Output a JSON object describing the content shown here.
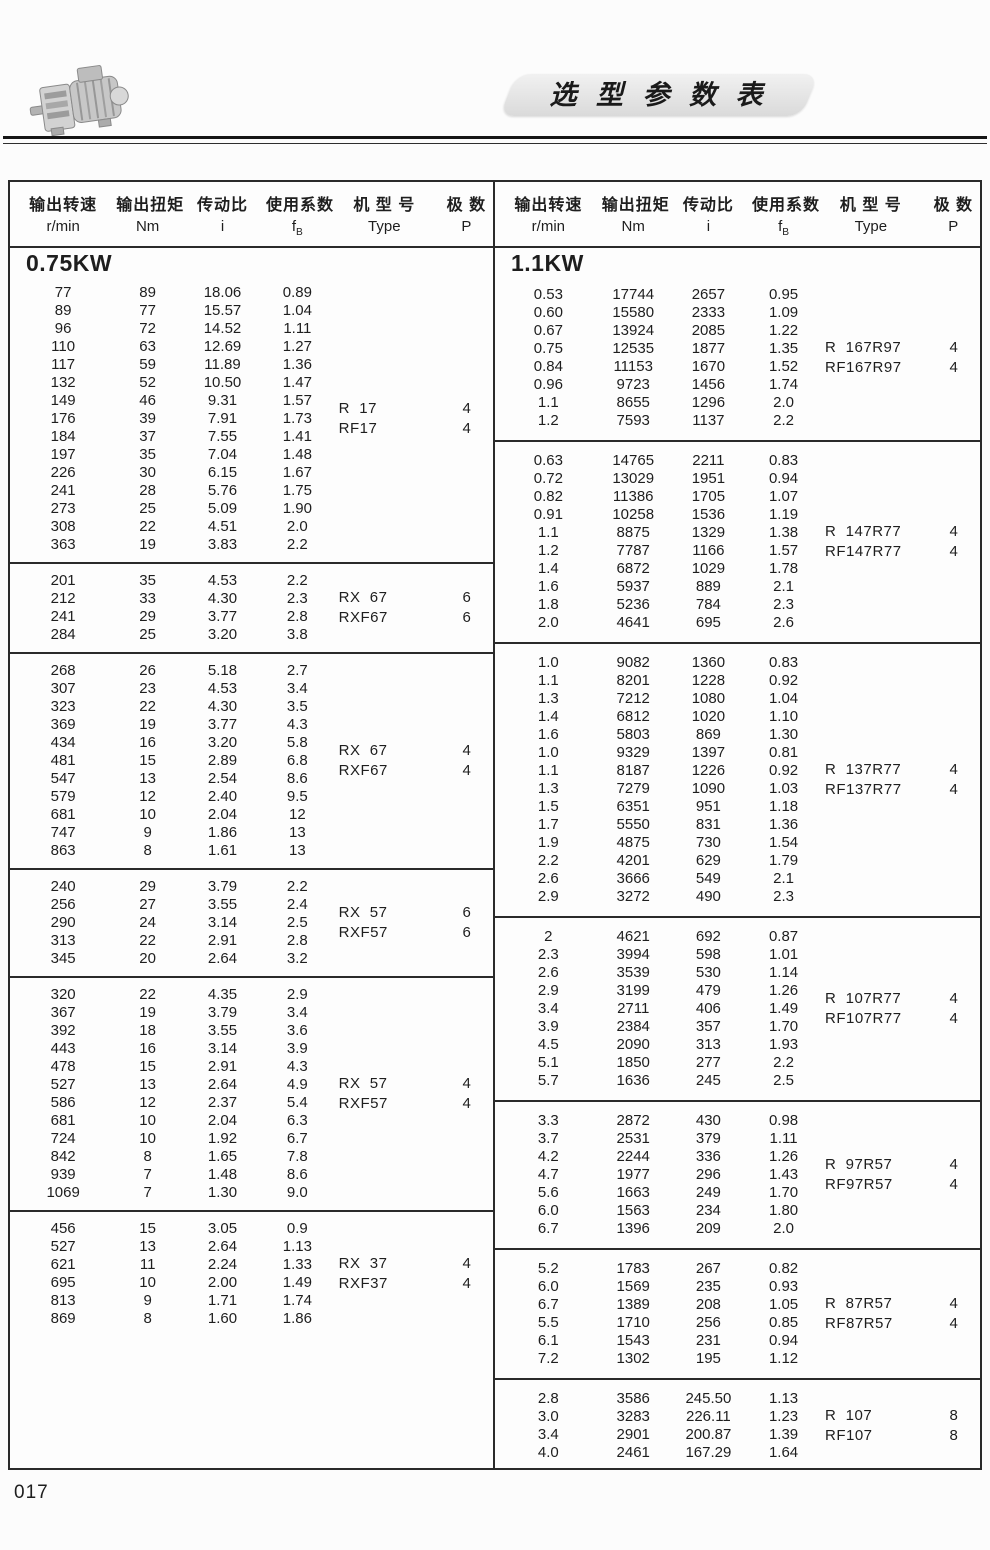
{
  "page": {
    "title": "选 型 参 数 表",
    "page_number": "017",
    "logo": "gearmotor-photo"
  },
  "header": {
    "cn": [
      "输出转速",
      "输出扭矩",
      "传动比",
      "使用系数",
      "机 型 号",
      "极 数"
    ],
    "units": [
      "r/min",
      "Nm",
      "i",
      "fB",
      "Type",
      "P"
    ]
  },
  "left_table": {
    "section": "0.75KW",
    "groups": [
      {
        "rows": [
          [
            "77",
            "89",
            "18.06",
            "0.89"
          ],
          [
            "89",
            "77",
            "15.57",
            "1.04"
          ],
          [
            "96",
            "72",
            "14.52",
            "1.11"
          ],
          [
            "110",
            "63",
            "12.69",
            "1.27"
          ],
          [
            "117",
            "59",
            "11.89",
            "1.36"
          ],
          [
            "132",
            "52",
            "10.50",
            "1.47"
          ],
          [
            "149",
            "46",
            "9.31",
            "1.57"
          ],
          [
            "176",
            "39",
            "7.91",
            "1.73"
          ],
          [
            "184",
            "37",
            "7.55",
            "1.41"
          ],
          [
            "197",
            "35",
            "7.04",
            "1.48"
          ],
          [
            "226",
            "30",
            "6.15",
            "1.67"
          ],
          [
            "241",
            "28",
            "5.76",
            "1.75"
          ],
          [
            "273",
            "25",
            "5.09",
            "1.90"
          ],
          [
            "308",
            "22",
            "4.51",
            "2.0"
          ],
          [
            "363",
            "19",
            "3.83",
            "2.2"
          ]
        ],
        "types": [
          {
            "type": "R  17",
            "p": "4"
          },
          {
            "type": "RF17",
            "p": "4"
          }
        ]
      },
      {
        "rows": [
          [
            "201",
            "35",
            "4.53",
            "2.2"
          ],
          [
            "212",
            "33",
            "4.30",
            "2.3"
          ],
          [
            "241",
            "29",
            "3.77",
            "2.8"
          ],
          [
            "284",
            "25",
            "3.20",
            "3.8"
          ]
        ],
        "types": [
          {
            "type": "RX  67",
            "p": "6"
          },
          {
            "type": "RXF67",
            "p": "6"
          }
        ]
      },
      {
        "rows": [
          [
            "268",
            "26",
            "5.18",
            "2.7"
          ],
          [
            "307",
            "23",
            "4.53",
            "3.4"
          ],
          [
            "323",
            "22",
            "4.30",
            "3.5"
          ],
          [
            "369",
            "19",
            "3.77",
            "4.3"
          ],
          [
            "434",
            "16",
            "3.20",
            "5.8"
          ],
          [
            "481",
            "15",
            "2.89",
            "6.8"
          ],
          [
            "547",
            "13",
            "2.54",
            "8.6"
          ],
          [
            "579",
            "12",
            "2.40",
            "9.5"
          ],
          [
            "681",
            "10",
            "2.04",
            "12"
          ],
          [
            "747",
            "9",
            "1.86",
            "13"
          ],
          [
            "863",
            "8",
            "1.61",
            "13"
          ]
        ],
        "types": [
          {
            "type": "RX  67",
            "p": "4"
          },
          {
            "type": "RXF67",
            "p": "4"
          }
        ]
      },
      {
        "rows": [
          [
            "240",
            "29",
            "3.79",
            "2.2"
          ],
          [
            "256",
            "27",
            "3.55",
            "2.4"
          ],
          [
            "290",
            "24",
            "3.14",
            "2.5"
          ],
          [
            "313",
            "22",
            "2.91",
            "2.8"
          ],
          [
            "345",
            "20",
            "2.64",
            "3.2"
          ]
        ],
        "types": [
          {
            "type": "RX  57",
            "p": "6"
          },
          {
            "type": "RXF57",
            "p": "6"
          }
        ]
      },
      {
        "rows": [
          [
            "320",
            "22",
            "4.35",
            "2.9"
          ],
          [
            "367",
            "19",
            "3.79",
            "3.4"
          ],
          [
            "392",
            "18",
            "3.55",
            "3.6"
          ],
          [
            "443",
            "16",
            "3.14",
            "3.9"
          ],
          [
            "478",
            "15",
            "2.91",
            "4.3"
          ],
          [
            "527",
            "13",
            "2.64",
            "4.9"
          ],
          [
            "586",
            "12",
            "2.37",
            "5.4"
          ],
          [
            "681",
            "10",
            "2.04",
            "6.3"
          ],
          [
            "724",
            "10",
            "1.92",
            "6.7"
          ],
          [
            "842",
            "8",
            "1.65",
            "7.8"
          ],
          [
            "939",
            "7",
            "1.48",
            "8.6"
          ],
          [
            "1069",
            "7",
            "1.30",
            "9.0"
          ]
        ],
        "types": [
          {
            "type": "RX  57",
            "p": "4"
          },
          {
            "type": "RXF57",
            "p": "4"
          }
        ]
      },
      {
        "rows": [
          [
            "456",
            "15",
            "3.05",
            "0.9"
          ],
          [
            "527",
            "13",
            "2.64",
            "1.13"
          ],
          [
            "621",
            "11",
            "2.24",
            "1.33"
          ],
          [
            "695",
            "10",
            "2.00",
            "1.49"
          ],
          [
            "813",
            "9",
            "1.71",
            "1.74"
          ],
          [
            "869",
            "8",
            "1.60",
            "1.86"
          ]
        ],
        "types": [
          {
            "type": "RX  37",
            "p": "4"
          },
          {
            "type": "RXF37",
            "p": "4"
          }
        ]
      }
    ]
  },
  "right_table": {
    "section": "1.1KW",
    "groups": [
      {
        "rows": [
          [
            "0.53",
            "17744",
            "2657",
            "0.95"
          ],
          [
            "0.60",
            "15580",
            "2333",
            "1.09"
          ],
          [
            "0.67",
            "13924",
            "2085",
            "1.22"
          ],
          [
            "0.75",
            "12535",
            "1877",
            "1.35"
          ],
          [
            "0.84",
            "11153",
            "1670",
            "1.52"
          ],
          [
            "0.96",
            "9723",
            "1456",
            "1.74"
          ],
          [
            "1.1",
            "8655",
            "1296",
            "2.0"
          ],
          [
            "1.2",
            "7593",
            "1137",
            "2.2"
          ]
        ],
        "types": [
          {
            "type": "R  167R97",
            "p": "4"
          },
          {
            "type": "RF167R97",
            "p": "4"
          }
        ]
      },
      {
        "rows": [
          [
            "0.63",
            "14765",
            "2211",
            "0.83"
          ],
          [
            "0.72",
            "13029",
            "1951",
            "0.94"
          ],
          [
            "0.82",
            "11386",
            "1705",
            "1.07"
          ],
          [
            "0.91",
            "10258",
            "1536",
            "1.19"
          ],
          [
            "1.1",
            "8875",
            "1329",
            "1.38"
          ],
          [
            "1.2",
            "7787",
            "1166",
            "1.57"
          ],
          [
            "1.4",
            "6872",
            "1029",
            "1.78"
          ],
          [
            "1.6",
            "5937",
            "889",
            "2.1"
          ],
          [
            "1.8",
            "5236",
            "784",
            "2.3"
          ],
          [
            "2.0",
            "4641",
            "695",
            "2.6"
          ]
        ],
        "types": [
          {
            "type": "R  147R77",
            "p": "4"
          },
          {
            "type": "RF147R77",
            "p": "4"
          }
        ]
      },
      {
        "rows": [
          [
            "1.0",
            "9082",
            "1360",
            "0.83"
          ],
          [
            "1.1",
            "8201",
            "1228",
            "0.92"
          ],
          [
            "1.3",
            "7212",
            "1080",
            "1.04"
          ],
          [
            "1.4",
            "6812",
            "1020",
            "1.10"
          ],
          [
            "1.6",
            "5803",
            "869",
            "1.30"
          ],
          [
            "1.0",
            "9329",
            "1397",
            "0.81"
          ],
          [
            "1.1",
            "8187",
            "1226",
            "0.92"
          ],
          [
            "1.3",
            "7279",
            "1090",
            "1.03"
          ],
          [
            "1.5",
            "6351",
            "951",
            "1.18"
          ],
          [
            "1.7",
            "5550",
            "831",
            "1.36"
          ],
          [
            "1.9",
            "4875",
            "730",
            "1.54"
          ],
          [
            "2.2",
            "4201",
            "629",
            "1.79"
          ],
          [
            "2.6",
            "3666",
            "549",
            "2.1"
          ],
          [
            "2.9",
            "3272",
            "490",
            "2.3"
          ]
        ],
        "types": [
          {
            "type": "R  137R77",
            "p": "4"
          },
          {
            "type": "RF137R77",
            "p": "4"
          }
        ]
      },
      {
        "rows": [
          [
            "2",
            "4621",
            "692",
            "0.87"
          ],
          [
            "2.3",
            "3994",
            "598",
            "1.01"
          ],
          [
            "2.6",
            "3539",
            "530",
            "1.14"
          ],
          [
            "2.9",
            "3199",
            "479",
            "1.26"
          ],
          [
            "3.4",
            "2711",
            "406",
            "1.49"
          ],
          [
            "3.9",
            "2384",
            "357",
            "1.70"
          ],
          [
            "4.5",
            "2090",
            "313",
            "1.93"
          ],
          [
            "5.1",
            "1850",
            "277",
            "2.2"
          ],
          [
            "5.7",
            "1636",
            "245",
            "2.5"
          ]
        ],
        "types": [
          {
            "type": "R  107R77",
            "p": "4"
          },
          {
            "type": "RF107R77",
            "p": "4"
          }
        ]
      },
      {
        "rows": [
          [
            "3.3",
            "2872",
            "430",
            "0.98"
          ],
          [
            "3.7",
            "2531",
            "379",
            "1.11"
          ],
          [
            "4.2",
            "2244",
            "336",
            "1.26"
          ],
          [
            "4.7",
            "1977",
            "296",
            "1.43"
          ],
          [
            "5.6",
            "1663",
            "249",
            "1.70"
          ],
          [
            "6.0",
            "1563",
            "234",
            "1.80"
          ],
          [
            "6.7",
            "1396",
            "209",
            "2.0"
          ]
        ],
        "types": [
          {
            "type": "R  97R57",
            "p": "4"
          },
          {
            "type": "RF97R57",
            "p": "4"
          }
        ]
      },
      {
        "rows": [
          [
            "5.2",
            "1783",
            "267",
            "0.82"
          ],
          [
            "6.0",
            "1569",
            "235",
            "0.93"
          ],
          [
            "6.7",
            "1389",
            "208",
            "1.05"
          ],
          [
            "5.5",
            "1710",
            "256",
            "0.85"
          ],
          [
            "6.1",
            "1543",
            "231",
            "0.94"
          ],
          [
            "7.2",
            "1302",
            "195",
            "1.12"
          ]
        ],
        "types": [
          {
            "type": "R  87R57",
            "p": "4"
          },
          {
            "type": "RF87R57",
            "p": "4"
          }
        ]
      },
      {
        "rows": [
          [
            "2.8",
            "3586",
            "245.50",
            "1.13"
          ],
          [
            "3.0",
            "3283",
            "226.11",
            "1.23"
          ],
          [
            "3.4",
            "2901",
            "200.87",
            "1.39"
          ],
          [
            "4.0",
            "2461",
            "167.29",
            "1.64"
          ]
        ],
        "types": [
          {
            "type": "R  107",
            "p": "8"
          },
          {
            "type": "RF107",
            "p": "8"
          }
        ]
      }
    ]
  }
}
